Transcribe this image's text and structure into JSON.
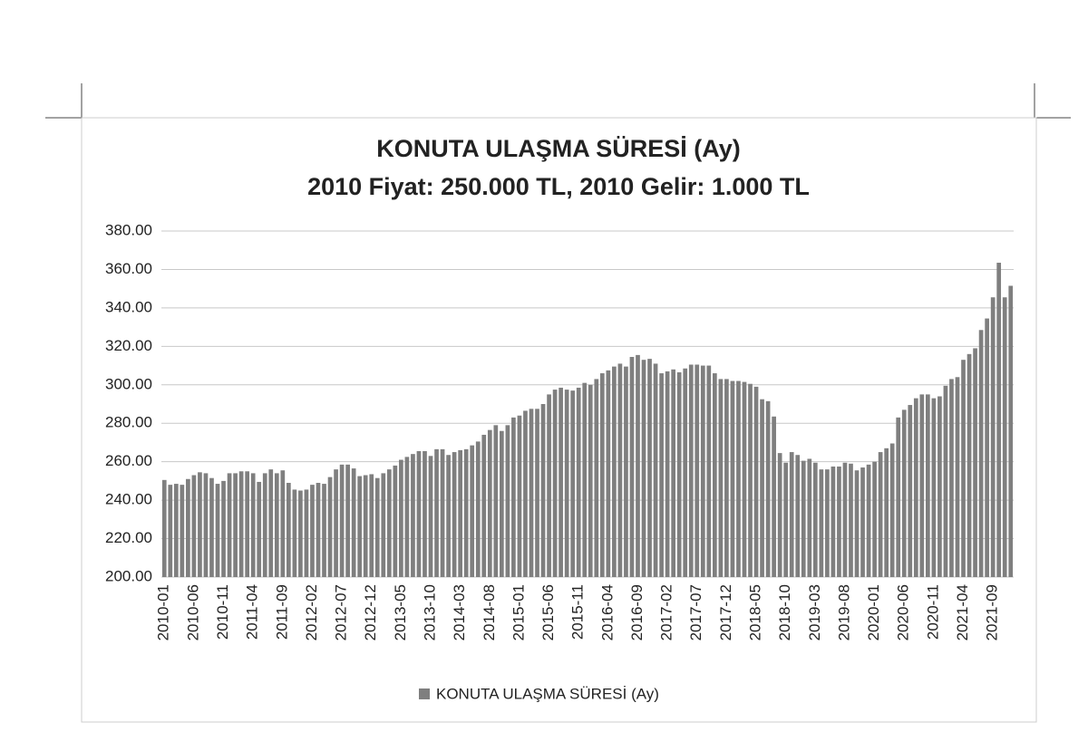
{
  "chart_data": {
    "type": "bar",
    "title": "KONUTA ULAŞMA SÜRESİ (Ay)",
    "subtitle": "2010 Fiyat: 250.000 TL, 2010 Gelir: 1.000 TL",
    "categories": [
      "2010-01",
      null,
      null,
      null,
      null,
      "2010-06",
      null,
      null,
      null,
      null,
      "2010-11",
      null,
      null,
      null,
      null,
      "2011-04",
      null,
      null,
      null,
      null,
      "2011-09",
      null,
      null,
      null,
      null,
      "2012-02",
      null,
      null,
      null,
      null,
      "2012-07",
      null,
      null,
      null,
      null,
      "2012-12",
      null,
      null,
      null,
      null,
      "2013-05",
      null,
      null,
      null,
      null,
      "2013-10",
      null,
      null,
      null,
      null,
      "2014-03",
      null,
      null,
      null,
      null,
      "2014-08",
      null,
      null,
      null,
      null,
      "2015-01",
      null,
      null,
      null,
      null,
      "2015-06",
      null,
      null,
      null,
      null,
      "2015-11",
      null,
      null,
      null,
      null,
      "2016-04",
      null,
      null,
      null,
      null,
      "2016-09",
      null,
      null,
      null,
      null,
      "2017-02",
      null,
      null,
      null,
      null,
      "2017-07",
      null,
      null,
      null,
      null,
      "2017-12",
      null,
      null,
      null,
      null,
      "2018-05",
      null,
      null,
      null,
      null,
      "2018-10",
      null,
      null,
      null,
      null,
      "2019-03",
      null,
      null,
      null,
      null,
      "2019-08",
      null,
      null,
      null,
      null,
      "2020-01",
      null,
      null,
      null,
      null,
      "2020-06",
      null,
      null,
      null,
      null,
      "2020-11",
      null,
      null,
      null,
      null,
      "2021-04",
      null,
      null,
      null,
      null,
      "2021-09",
      null,
      null,
      null
    ],
    "series": [
      {
        "name": "KONUTA ULAŞMA SÜRESİ (Ay)",
        "color": "#7f7f7f",
        "values": [
          250.5,
          248,
          248.5,
          248,
          251,
          253,
          254.5,
          254,
          251.5,
          248.5,
          250,
          254,
          254,
          255,
          255,
          254,
          249.5,
          254,
          256,
          254,
          255.5,
          249,
          245.5,
          245,
          245.5,
          248,
          249,
          248.5,
          252,
          256,
          258.5,
          258.5,
          256.5,
          252.5,
          253,
          253.5,
          251.5,
          254,
          256,
          258,
          261,
          262.5,
          264,
          265.5,
          265.5,
          263,
          266.5,
          266.5,
          263.5,
          265,
          266,
          266.5,
          268.5,
          270.5,
          274,
          276.5,
          279,
          276,
          279,
          283,
          284,
          286.5,
          287.5,
          287.5,
          290,
          295,
          297.5,
          298.5,
          297.5,
          297,
          298.5,
          301,
          300,
          303,
          306,
          307.5,
          309.5,
          311,
          309.5,
          314.5,
          315.5,
          313,
          313.5,
          311,
          306,
          307,
          308,
          306.5,
          308.5,
          310.5,
          310.5,
          310,
          310,
          306,
          303,
          303,
          302,
          302,
          301.5,
          300.5,
          299,
          292.5,
          291.5,
          283.5,
          264.5,
          259.5,
          265,
          263.5,
          260.5,
          261.5,
          259.5,
          256,
          256,
          257.5,
          257.5,
          259.5,
          259,
          255.5,
          257,
          258.5,
          260,
          265,
          267,
          269.5,
          283,
          287,
          289.5,
          293,
          295,
          295,
          293,
          294,
          299.5,
          303,
          304,
          313,
          316,
          319,
          328.5,
          334.5,
          345.5,
          363.5,
          345.5,
          351.5
        ]
      }
    ],
    "ylim": [
      200,
      380
    ],
    "yticks": [
      {
        "value": 200,
        "label": "200.00"
      },
      {
        "value": 220,
        "label": "220.00"
      },
      {
        "value": 240,
        "label": "240.00"
      },
      {
        "value": 260,
        "label": "260.00"
      },
      {
        "value": 280,
        "label": "280.00"
      },
      {
        "value": 300,
        "label": "300.00"
      },
      {
        "value": 320,
        "label": "320.00"
      },
      {
        "value": 340,
        "label": "340.00"
      },
      {
        "value": 360,
        "label": "360.00"
      },
      {
        "value": 380,
        "label": "380.00"
      }
    ],
    "grid": true,
    "legend": "bottom"
  }
}
